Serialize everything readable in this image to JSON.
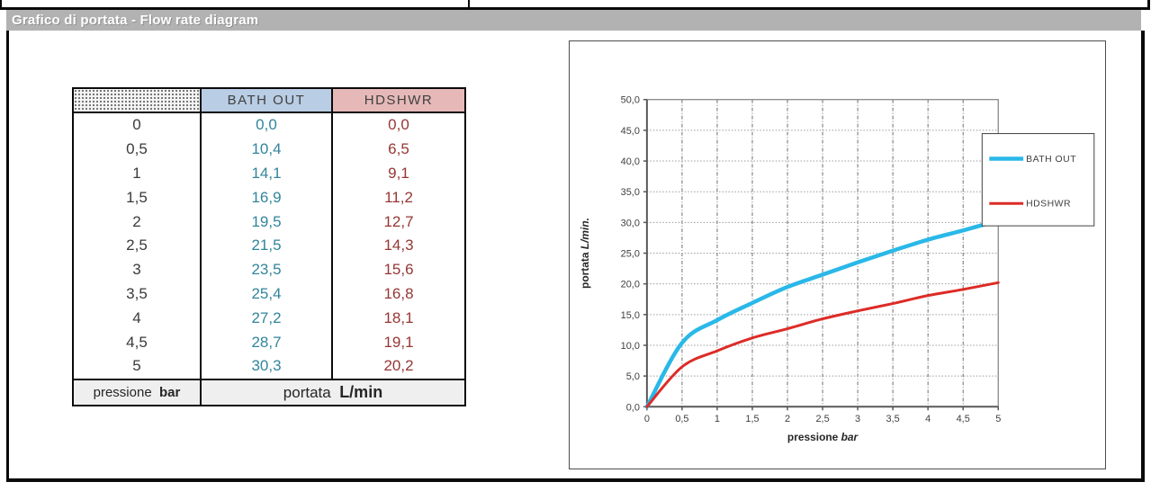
{
  "page": {
    "title": "Grafico di portata - Flow rate diagram"
  },
  "colors": {
    "title_bar_bg": "#b2b2b2",
    "header_blue_bg": "#b9cde4",
    "header_red_bg": "#e6b9b8",
    "bath_out_text": "#31859c",
    "hdshwr_text": "#953735",
    "bath_out_line": "#29b8e8",
    "hdshwr_line": "#dd2b26",
    "footer_bg": "#efefef"
  },
  "table": {
    "headers": [
      "",
      "BATH OUT",
      "HDSHWR"
    ],
    "rows": [
      [
        "0",
        "0,0",
        "0,0"
      ],
      [
        "0,5",
        "10,4",
        "6,5"
      ],
      [
        "1",
        "14,1",
        "9,1"
      ],
      [
        "1,5",
        "16,9",
        "11,2"
      ],
      [
        "2",
        "19,5",
        "12,7"
      ],
      [
        "2,5",
        "21,5",
        "14,3"
      ],
      [
        "3",
        "23,5",
        "15,6"
      ],
      [
        "3,5",
        "25,4",
        "16,8"
      ],
      [
        "4",
        "27,2",
        "18,1"
      ],
      [
        "4,5",
        "28,7",
        "19,1"
      ],
      [
        "5",
        "30,3",
        "20,2"
      ]
    ],
    "footer": {
      "col1_label": "pressione",
      "col1_unit": "bar",
      "col2_label": "portata",
      "col2_unit": "L/min"
    }
  },
  "chart_data": {
    "type": "line",
    "x": [
      0,
      0.5,
      1,
      1.5,
      2,
      2.5,
      3,
      3.5,
      4,
      4.5,
      5
    ],
    "series": [
      {
        "name": "BATH OUT",
        "color": "#29b8e8",
        "width": 4.5,
        "values": [
          0,
          10.4,
          14.1,
          16.9,
          19.5,
          21.5,
          23.5,
          25.4,
          27.2,
          28.7,
          30.3
        ]
      },
      {
        "name": "HDSHWR",
        "color": "#dd2b26",
        "width": 3,
        "values": [
          0,
          6.5,
          9.1,
          11.2,
          12.7,
          14.3,
          15.6,
          16.8,
          18.1,
          19.1,
          20.2
        ]
      }
    ],
    "xlabel": {
      "text": "pressione",
      "unit": "bar"
    },
    "ylabel": {
      "text": "portata",
      "unit": "L/min."
    },
    "xlim": [
      0,
      5
    ],
    "ylim": [
      0,
      50
    ],
    "xtick_labels": [
      "0",
      "0,5",
      "1",
      "1,5",
      "2",
      "2,5",
      "3",
      "3,5",
      "4",
      "4,5",
      "5"
    ],
    "ytick_labels": [
      "0,0",
      "5,0",
      "10,0",
      "15,0",
      "20,0",
      "25,0",
      "30,0",
      "35,0",
      "40,0",
      "45,0",
      "50,0"
    ],
    "grid": true,
    "legend_position": "right-inside-overlapping-plot"
  }
}
